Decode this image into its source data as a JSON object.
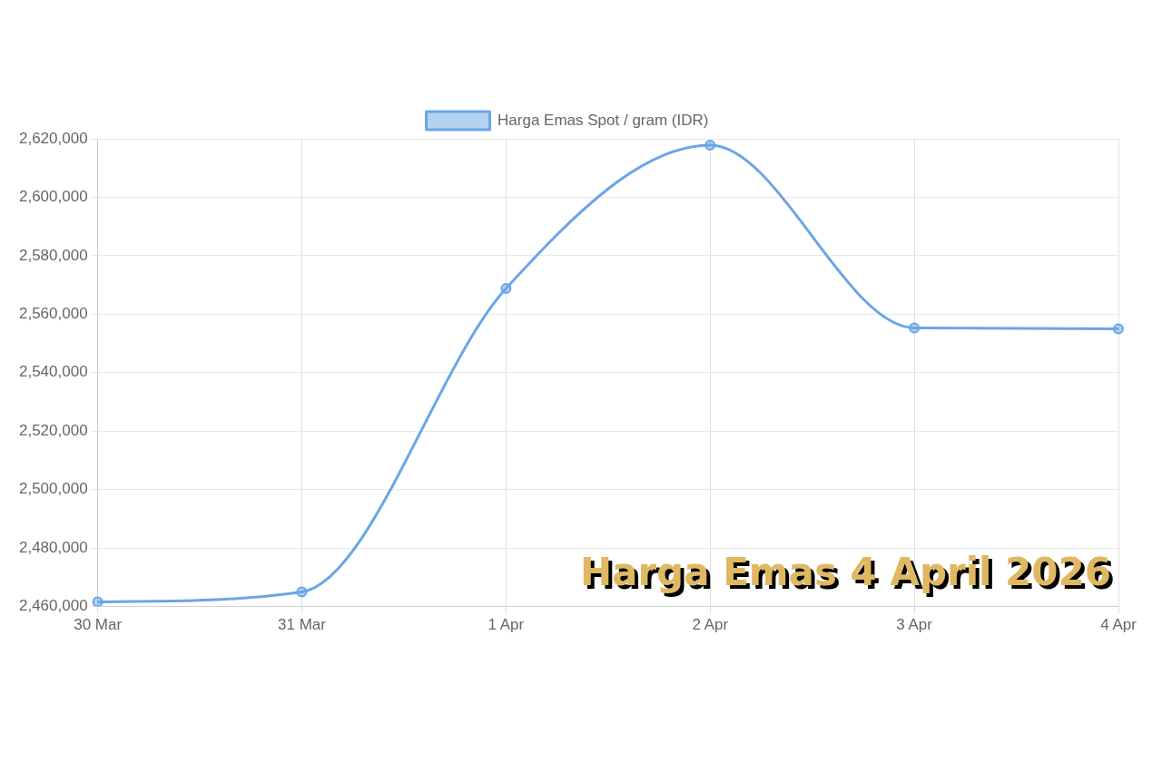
{
  "chart_data": {
    "type": "line",
    "categories": [
      "30 Mar",
      "31 Mar",
      "1 Apr",
      "2 Apr",
      "3 Apr",
      "4 Apr"
    ],
    "series": [
      {
        "name": "Harga Emas Spot / gram (IDR)",
        "color": "#6aa6e6",
        "values": [
          2461600,
          2465000,
          2568800,
          2617800,
          2555300,
          2555000
        ]
      }
    ],
    "ylim": [
      2460000,
      2620000
    ],
    "yticks": [
      {
        "value": 2460000,
        "label": "2,460,000"
      },
      {
        "value": 2480000,
        "label": "2,480,000"
      },
      {
        "value": 2500000,
        "label": "2,500,000"
      },
      {
        "value": 2520000,
        "label": "2,520,000"
      },
      {
        "value": 2540000,
        "label": "2,540,000"
      },
      {
        "value": 2560000,
        "label": "2,560,000"
      },
      {
        "value": 2580000,
        "label": "2,580,000"
      },
      {
        "value": 2600000,
        "label": "2,600,000"
      },
      {
        "value": 2620000,
        "label": "2,620,000"
      }
    ],
    "grid": true,
    "legend": "top",
    "marker": "circle",
    "line_style": "solid",
    "annotations": [
      "Harga Emas 4 April 2026"
    ]
  }
}
